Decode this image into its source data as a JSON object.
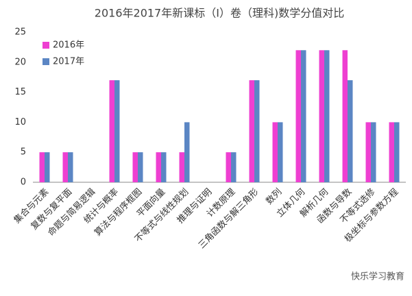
{
  "chart_data": {
    "type": "bar",
    "title": "2016年2017年新课标（Ⅰ）卷（理科)数学分值对比",
    "categories": [
      "集合与元素",
      "复数与复平面",
      "命题与简易逻辑",
      "统计与概率",
      "算法与程序框图",
      "平面向量",
      "不等式与线性规划",
      "推理与证明",
      "计数原理",
      "三角函数与解三角形",
      "数列",
      "立体几何",
      "解析几何",
      "函数与导数",
      "不等式选修",
      "极坐标与参数方程"
    ],
    "series": [
      {
        "name": "2016年",
        "color": "#ee3fd1",
        "values": [
          5,
          5,
          0,
          17,
          5,
          5,
          5,
          0,
          5,
          17,
          10,
          22,
          22,
          22,
          10,
          10
        ]
      },
      {
        "name": "2017年",
        "color": "#5b86c4",
        "values": [
          5,
          5,
          0,
          17,
          5,
          5,
          10,
          0,
          5,
          17,
          10,
          22,
          22,
          17,
          10,
          10
        ]
      }
    ],
    "ylim": [
      0,
      25
    ],
    "yticks": [
      0,
      5,
      10,
      15,
      20,
      25
    ],
    "grid": false,
    "legend": "top-left"
  },
  "watermark": "快乐学习教育"
}
